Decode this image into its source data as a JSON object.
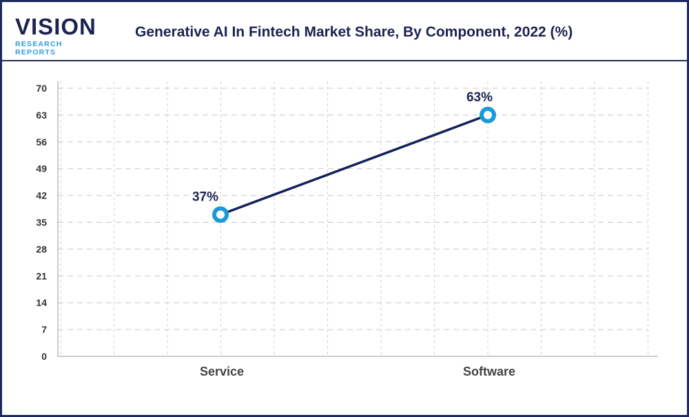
{
  "logo": {
    "main": "VISION",
    "sub": "RESEARCH REPORTS"
  },
  "chart_data": {
    "type": "line",
    "title": "Generative AI In Fintech Market Share, By Component, 2022 (%)",
    "categories": [
      "Service",
      "Software"
    ],
    "values": [
      37,
      63
    ],
    "data_labels": [
      "37%",
      "63%"
    ],
    "xlabel": "",
    "ylabel": "",
    "ylim": [
      0,
      70
    ],
    "yticks": [
      0,
      7,
      14,
      21,
      28,
      35,
      42,
      49,
      56,
      63,
      70
    ],
    "grid": true,
    "colors": {
      "line": "#13205a",
      "marker": "#1a9ad8",
      "frame": "#1c2a5b"
    }
  }
}
